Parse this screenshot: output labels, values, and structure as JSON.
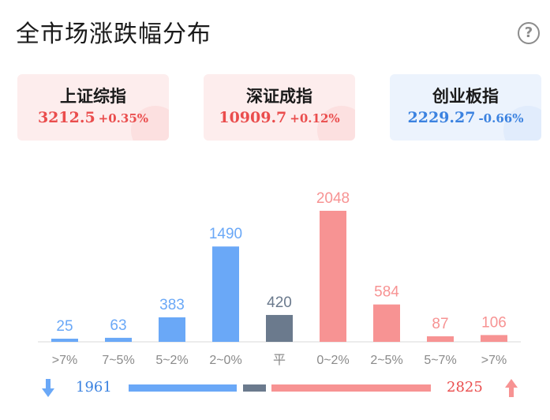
{
  "title": "全市场涨跌幅分布",
  "help_icon": "question-circle-icon",
  "indices": [
    {
      "name": "上证综指",
      "value": "3212.5",
      "change": "+0.35%",
      "trend": "up"
    },
    {
      "name": "深证成指",
      "value": "10909.7",
      "change": "+0.12%",
      "trend": "up"
    },
    {
      "name": "创业板指",
      "value": "2229.27",
      "change": "-0.66%",
      "trend": "down"
    }
  ],
  "colors": {
    "fall": "#6aa8f7",
    "flat": "#6b7a8d",
    "rise": "#f79393",
    "fall_text": "#3b82e0",
    "rise_text": "#ea4d4d"
  },
  "chart_data": {
    "type": "bar",
    "categories": [
      ">7%",
      "7~5%",
      "5~2%",
      "2~0%",
      "平",
      "0~2%",
      "2~5%",
      "5~7%",
      ">7%"
    ],
    "values": [
      25,
      63,
      383,
      1490,
      420,
      2048,
      584,
      87,
      106
    ],
    "groups": [
      "fall",
      "fall",
      "fall",
      "fall",
      "flat",
      "rise",
      "rise",
      "rise",
      "rise"
    ],
    "ylim": [
      0,
      2048
    ]
  },
  "summary": {
    "fall_total": "1961",
    "rise_total": "2825"
  }
}
